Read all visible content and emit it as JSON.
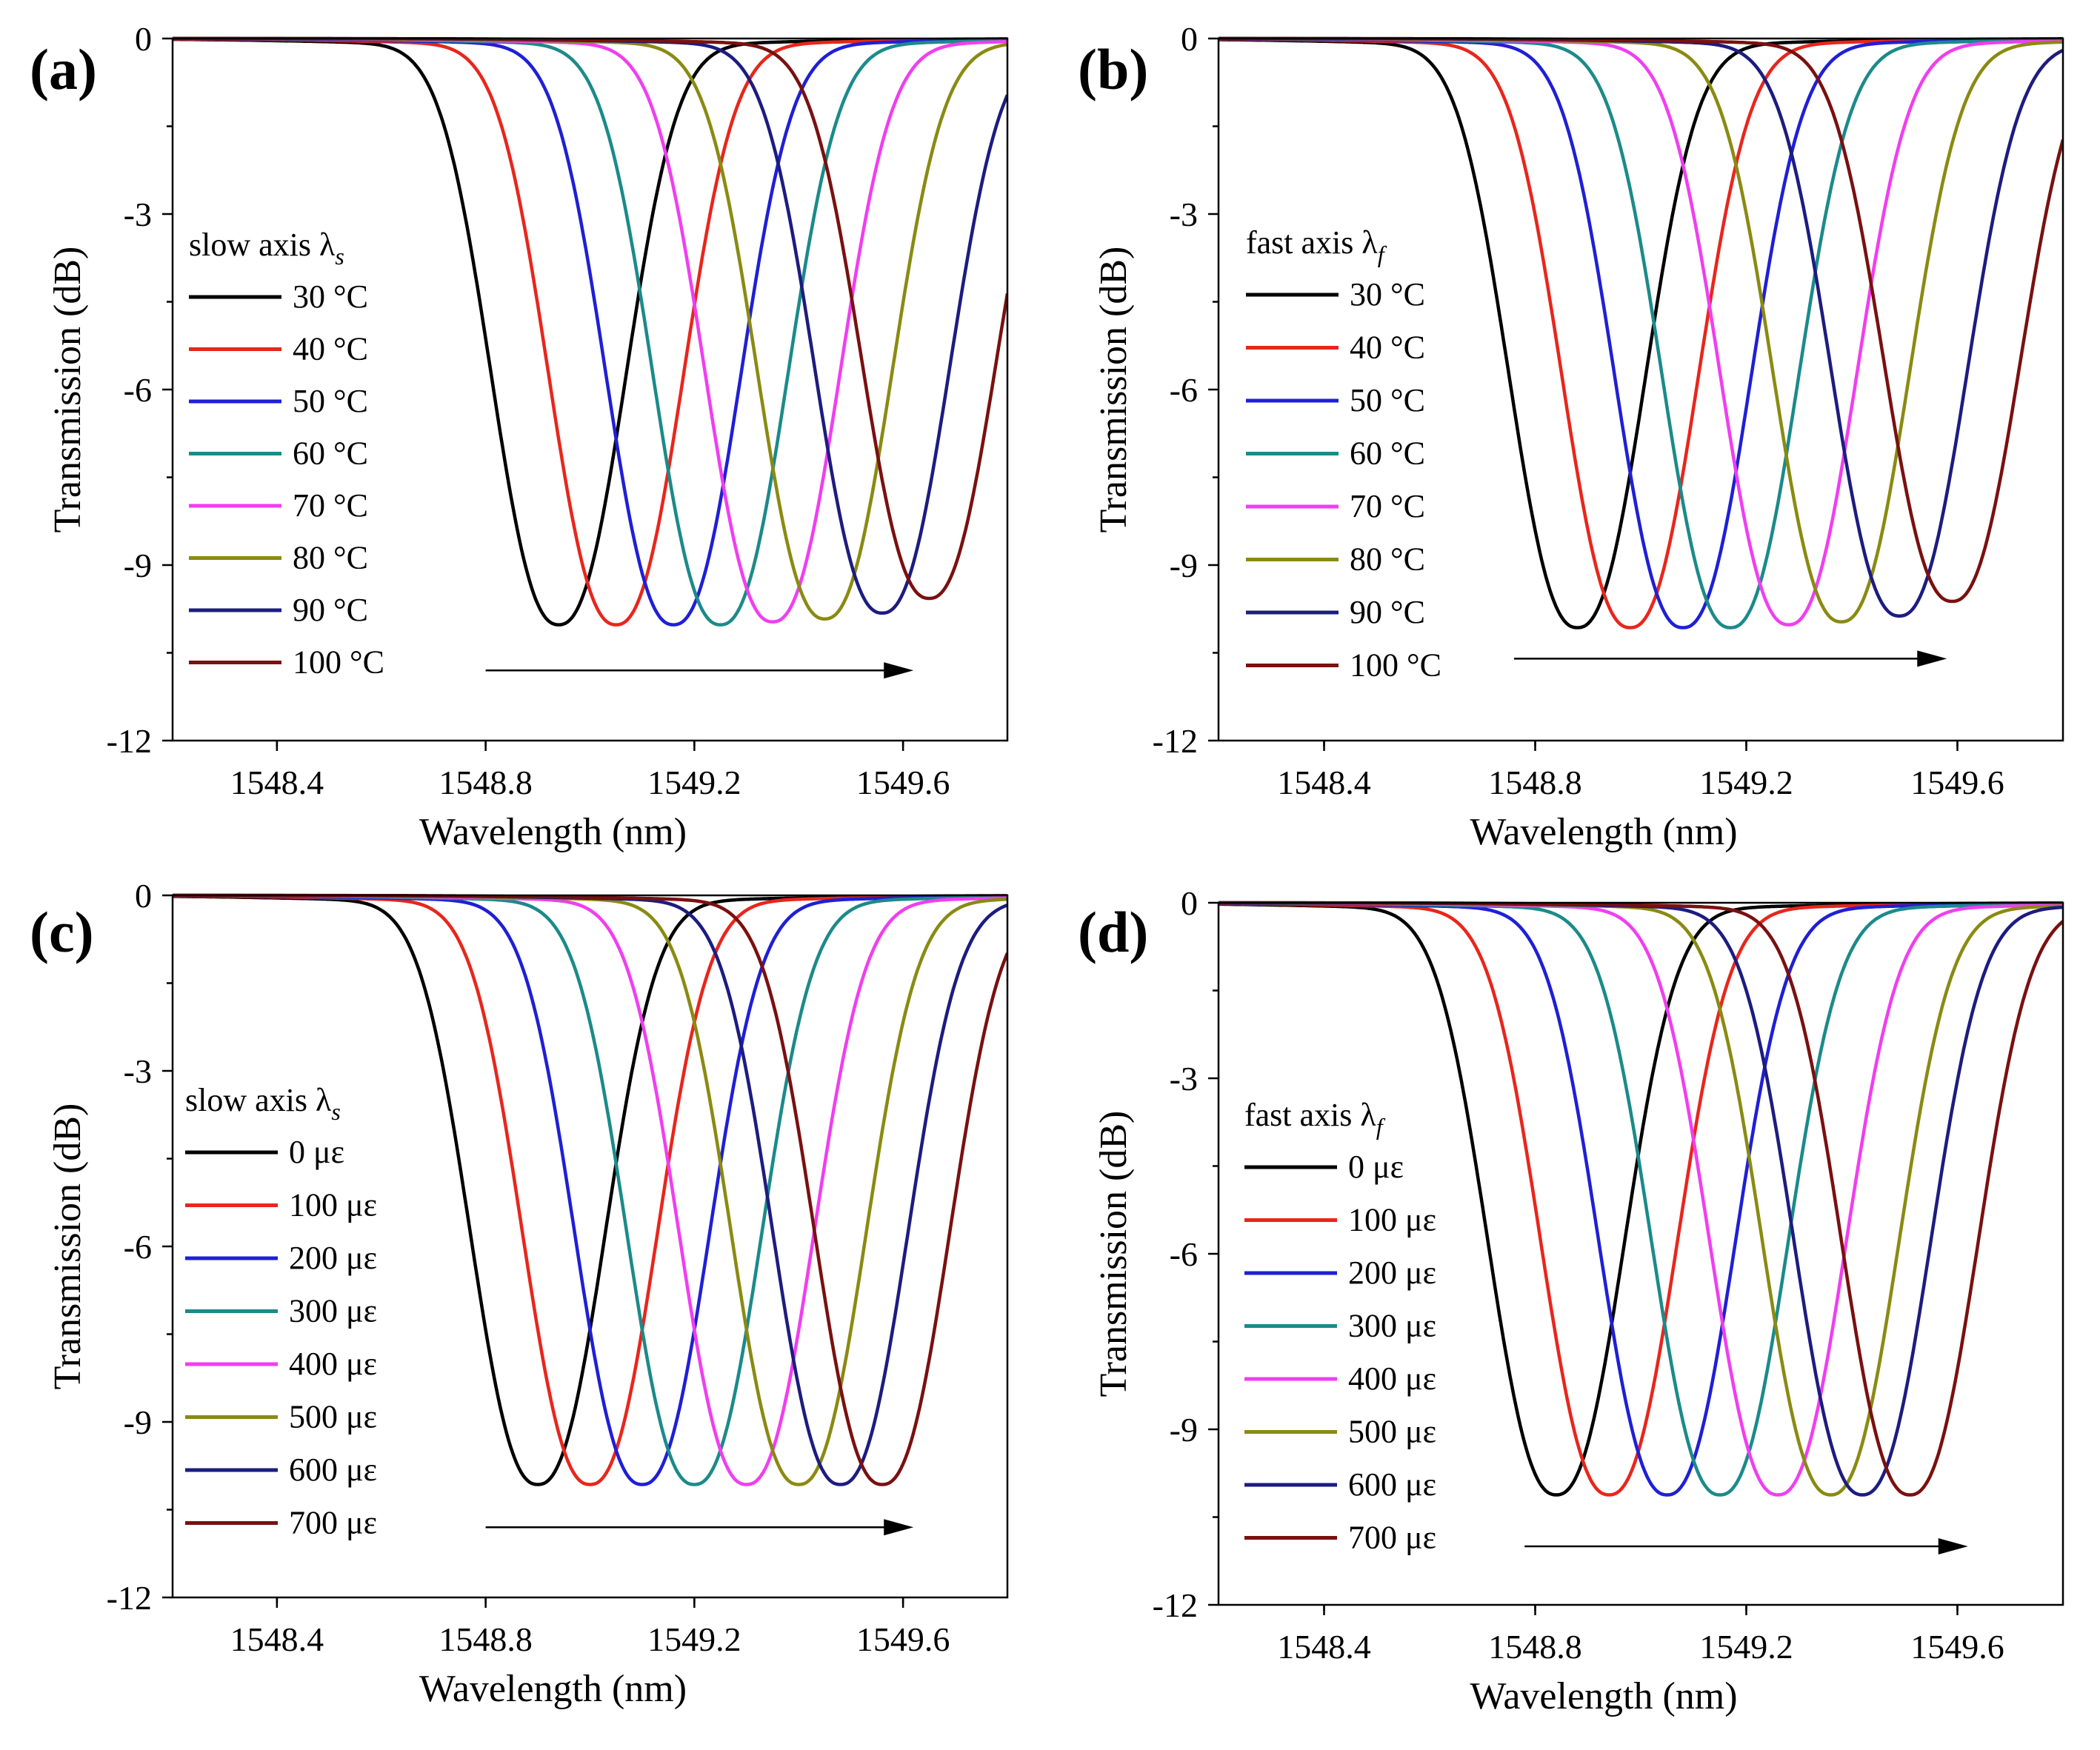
{
  "chart_data": [
    {
      "type": "line",
      "panel": "(a)",
      "xlabel": "Wavelength (nm)",
      "ylabel": "Transmission (dB)",
      "xlim": [
        1548.2,
        1549.8
      ],
      "ylim": [
        -12,
        0
      ],
      "xticks": [
        1548.4,
        1548.8,
        1549.2,
        1549.6
      ],
      "xtick_labels": [
        "1548.4",
        "1548.8",
        "1549.2",
        "1549.6"
      ],
      "yticks": [
        0,
        -3,
        -6,
        -9,
        -12
      ],
      "ytick_labels": [
        "0",
        "-3",
        "-6",
        "-9",
        "-12"
      ],
      "legend_title": "slow axis",
      "legend_symbol": "λ",
      "legend_sub": "s",
      "arrow": {
        "from": 1548.8,
        "to": 1549.62,
        "y": -10.8
      },
      "series": [
        {
          "name": "30 °C",
          "color": "#000000",
          "center": 1548.94,
          "depth": 9.9
        },
        {
          "name": "40 °C",
          "color": "#e8261c",
          "center": 1549.05,
          "depth": 9.9
        },
        {
          "name": "50 °C",
          "color": "#1f1fd6",
          "center": 1549.16,
          "depth": 9.9
        },
        {
          "name": "60 °C",
          "color": "#1b8a8a",
          "center": 1549.25,
          "depth": 9.9
        },
        {
          "name": "70 °C",
          "color": "#f03ef0",
          "center": 1549.35,
          "depth": 9.85
        },
        {
          "name": "80 °C",
          "color": "#8a8a12",
          "center": 1549.45,
          "depth": 9.8
        },
        {
          "name": "90 °C",
          "color": "#1c1c80",
          "center": 1549.56,
          "depth": 9.7
        },
        {
          "name": "100 °C",
          "color": "#7a1010",
          "center": 1549.65,
          "depth": 9.45
        }
      ]
    },
    {
      "type": "line",
      "panel": "(b)",
      "xlabel": "Wavelength (nm)",
      "ylabel": "Transmission (dB)",
      "xlim": [
        1548.2,
        1549.8
      ],
      "ylim": [
        -12,
        0
      ],
      "xticks": [
        1548.4,
        1548.8,
        1549.2,
        1549.6
      ],
      "xtick_labels": [
        "1548.4",
        "1548.8",
        "1549.2",
        "1549.6"
      ],
      "yticks": [
        0,
        -3,
        -6,
        -9,
        -12
      ],
      "ytick_labels": [
        "0",
        "-3",
        "-6",
        "-9",
        "-12"
      ],
      "legend_title": "fast axis",
      "legend_symbol": "λ",
      "legend_sub": "f",
      "arrow": {
        "from": 1548.76,
        "to": 1549.58,
        "y": -10.6
      },
      "series": [
        {
          "name": "30 °C",
          "color": "#000000",
          "center": 1548.88,
          "depth": 9.95
        },
        {
          "name": "40 °C",
          "color": "#e8261c",
          "center": 1548.98,
          "depth": 9.95
        },
        {
          "name": "50 °C",
          "color": "#1f1fd6",
          "center": 1549.08,
          "depth": 9.95
        },
        {
          "name": "60 °C",
          "color": "#1b8a8a",
          "center": 1549.17,
          "depth": 9.95
        },
        {
          "name": "70 °C",
          "color": "#f03ef0",
          "center": 1549.28,
          "depth": 9.9
        },
        {
          "name": "80 °C",
          "color": "#8a8a12",
          "center": 1549.38,
          "depth": 9.85
        },
        {
          "name": "90 °C",
          "color": "#1c1c80",
          "center": 1549.49,
          "depth": 9.75
        },
        {
          "name": "100 °C",
          "color": "#7a1010",
          "center": 1549.59,
          "depth": 9.5
        }
      ]
    },
    {
      "type": "line",
      "panel": "(c)",
      "xlabel": "Wavelength (nm)",
      "ylabel": "Transmission (dB)",
      "xlim": [
        1548.2,
        1549.8
      ],
      "ylim": [
        -12,
        0
      ],
      "xticks": [
        1548.4,
        1548.8,
        1549.2,
        1549.6
      ],
      "xtick_labels": [
        "1548.4",
        "1548.8",
        "1549.2",
        "1549.6"
      ],
      "yticks": [
        0,
        -3,
        -6,
        -9,
        -12
      ],
      "ytick_labels": [
        "0",
        "-3",
        "-6",
        "-9",
        "-12"
      ],
      "legend_title": "slow axis",
      "legend_symbol": "λ",
      "legend_sub": "s",
      "arrow": {
        "from": 1548.8,
        "to": 1549.62,
        "y": -10.8
      },
      "series": [
        {
          "name": "0 με",
          "color": "#000000",
          "center": 1548.9,
          "depth": 9.95
        },
        {
          "name": "100 με",
          "color": "#e8261c",
          "center": 1549.0,
          "depth": 9.95
        },
        {
          "name": "200 με",
          "color": "#1f1fd6",
          "center": 1549.1,
          "depth": 9.95
        },
        {
          "name": "300 με",
          "color": "#1b8a8a",
          "center": 1549.2,
          "depth": 9.95
        },
        {
          "name": "400 με",
          "color": "#f03ef0",
          "center": 1549.3,
          "depth": 9.95
        },
        {
          "name": "500 με",
          "color": "#8a8a12",
          "center": 1549.4,
          "depth": 9.95
        },
        {
          "name": "600 με",
          "color": "#1c1c80",
          "center": 1549.48,
          "depth": 9.95
        },
        {
          "name": "700 με",
          "color": "#7a1010",
          "center": 1549.56,
          "depth": 9.95
        }
      ]
    },
    {
      "type": "line",
      "panel": "(d)",
      "xlabel": "Wavelength (nm)",
      "ylabel": "Transmission (dB)",
      "xlim": [
        1548.2,
        1549.8
      ],
      "ylim": [
        -12,
        0
      ],
      "xticks": [
        1548.4,
        1548.8,
        1549.2,
        1549.6
      ],
      "xtick_labels": [
        "1548.4",
        "1548.8",
        "1549.2",
        "1549.6"
      ],
      "yticks": [
        0,
        -3,
        -6,
        -9,
        -12
      ],
      "ytick_labels": [
        "0",
        "-3",
        "-6",
        "-9",
        "-12"
      ],
      "legend_title": "fast axis",
      "legend_symbol": "λ",
      "legend_sub": "f",
      "arrow": {
        "from": 1548.78,
        "to": 1549.62,
        "y": -11.0
      },
      "series": [
        {
          "name": "0 με",
          "color": "#000000",
          "center": 1548.84,
          "depth": 10.0
        },
        {
          "name": "100 με",
          "color": "#e8261c",
          "center": 1548.94,
          "depth": 10.0
        },
        {
          "name": "200 με",
          "color": "#1f1fd6",
          "center": 1549.05,
          "depth": 10.0
        },
        {
          "name": "300 με",
          "color": "#1b8a8a",
          "center": 1549.15,
          "depth": 10.0
        },
        {
          "name": "400 με",
          "color": "#f03ef0",
          "center": 1549.26,
          "depth": 10.0
        },
        {
          "name": "500 με",
          "color": "#8a8a12",
          "center": 1549.36,
          "depth": 10.0
        },
        {
          "name": "600 με",
          "color": "#1c1c80",
          "center": 1549.42,
          "depth": 10.0
        },
        {
          "name": "700 με",
          "color": "#7a1010",
          "center": 1549.51,
          "depth": 10.0
        }
      ]
    }
  ]
}
